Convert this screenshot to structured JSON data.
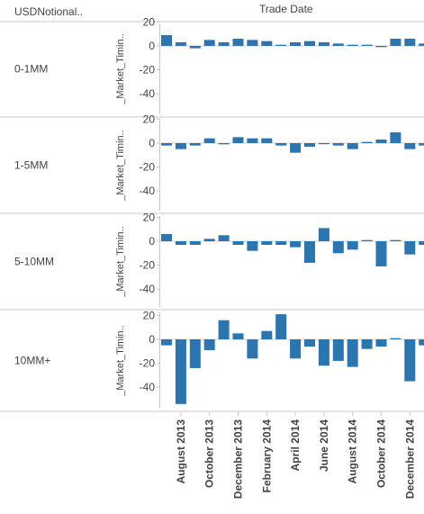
{
  "header": {
    "row_field": "USDNotional..",
    "column_field": "Trade Date"
  },
  "colors": {
    "bar": "#2b75b0",
    "axis": "#c8c8c8",
    "grid": "#e6e6e6",
    "zero_line": "#d0d0d0",
    "text": "#444444"
  },
  "chart_data": {
    "type": "bar",
    "xlabel": "Trade Date",
    "ylabel": "_Market_Timin..",
    "ylim": [
      -60,
      20
    ],
    "yticks": [
      20,
      0,
      -20,
      -40
    ],
    "grid": false,
    "x_tick_labels": [
      "August 2013",
      "October 2013",
      "December 2013",
      "February 2014",
      "April 2014",
      "June 2014",
      "August 2014",
      "October 2014",
      "December 2014"
    ],
    "categories": [
      "2013-07",
      "2013-08",
      "2013-09",
      "2013-10",
      "2013-11",
      "2013-12",
      "2014-01",
      "2014-02",
      "2014-03",
      "2014-04",
      "2014-05",
      "2014-06",
      "2014-07",
      "2014-08",
      "2014-09",
      "2014-10",
      "2014-11",
      "2014-12",
      "2015-01"
    ],
    "series": [
      {
        "name": "0-1MM",
        "values": [
          9,
          3,
          -2,
          5,
          3,
          6,
          5,
          4,
          1,
          3,
          4,
          3,
          2,
          1,
          1,
          -1,
          6,
          6,
          2
        ]
      },
      {
        "name": "1-5MM",
        "values": [
          -2,
          -5,
          -2,
          4,
          -1,
          5,
          4,
          4,
          -2,
          -8,
          -3,
          0,
          -2,
          -5,
          1,
          3,
          9,
          -5,
          -2
        ]
      },
      {
        "name": "5-10MM",
        "values": [
          6,
          -3,
          -3,
          2,
          5,
          -3,
          -8,
          -3,
          -3,
          -5,
          -18,
          11,
          -10,
          -7,
          1,
          -21,
          1,
          -11,
          -3
        ]
      },
      {
        "name": "10MM+",
        "values": [
          -5,
          -54,
          -24,
          -9,
          16,
          5,
          -16,
          7,
          21,
          -16,
          -6,
          -22,
          -18,
          -23,
          -8,
          -6,
          1,
          -35,
          -5
        ]
      }
    ]
  }
}
